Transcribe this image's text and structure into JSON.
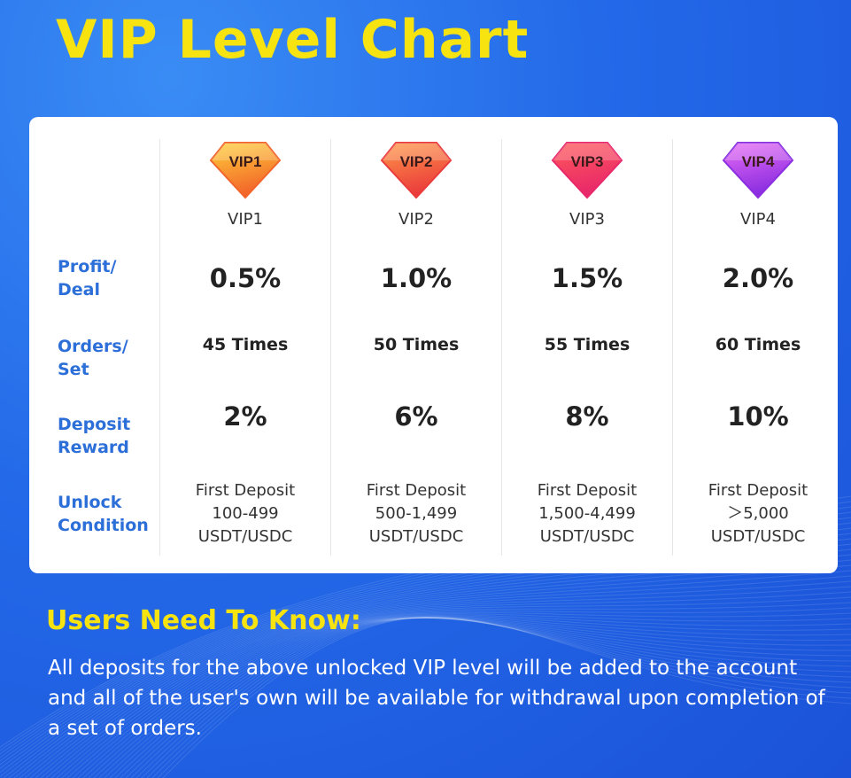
{
  "title": "VIP Level Chart",
  "row_labels": {
    "profit": "Profit/\nDeal",
    "orders": "Orders/\nSet",
    "deposit": "Deposit\nReward",
    "unlock": "Unlock\nCondition"
  },
  "levels": [
    {
      "badge": "VIP1",
      "name": "VIP1",
      "profit": "0.5%",
      "orders": "45 Times",
      "deposit": "2%",
      "unlock_1": "First Deposit",
      "unlock_2": "100-499",
      "unlock_3": "USDT/USDC",
      "color_top": "#ffd23a",
      "color_bottom": "#f2642a"
    },
    {
      "badge": "VIP2",
      "name": "VIP2",
      "profit": "1.0%",
      "orders": "50 Times",
      "deposit": "6%",
      "unlock_1": "First Deposit",
      "unlock_2": "500-1,499",
      "unlock_3": "USDT/USDC",
      "color_top": "#ff9a4a",
      "color_bottom": "#ea3b3b"
    },
    {
      "badge": "VIP3",
      "name": "VIP3",
      "profit": "1.5%",
      "orders": "55 Times",
      "deposit": "8%",
      "unlock_1": "First Deposit",
      "unlock_2": "1,500-4,499",
      "unlock_3": "USDT/USDC",
      "color_top": "#ff5a5a",
      "color_bottom": "#e8286a"
    },
    {
      "badge": "VIP4",
      "name": "VIP4",
      "profit": "2.0%",
      "orders": "60 Times",
      "deposit": "10%",
      "unlock_1": "First Deposit",
      "unlock_2": "＞5,000",
      "unlock_3": "USDT/USDC",
      "color_top": "#e86cf5",
      "color_bottom": "#8a2ee0"
    }
  ],
  "notice": {
    "heading": "Users Need To Know:",
    "text": "All deposits for the above unlocked VIP level will be added to the account and all of the user's own will be available for withdrawal upon completion of a set of orders."
  }
}
